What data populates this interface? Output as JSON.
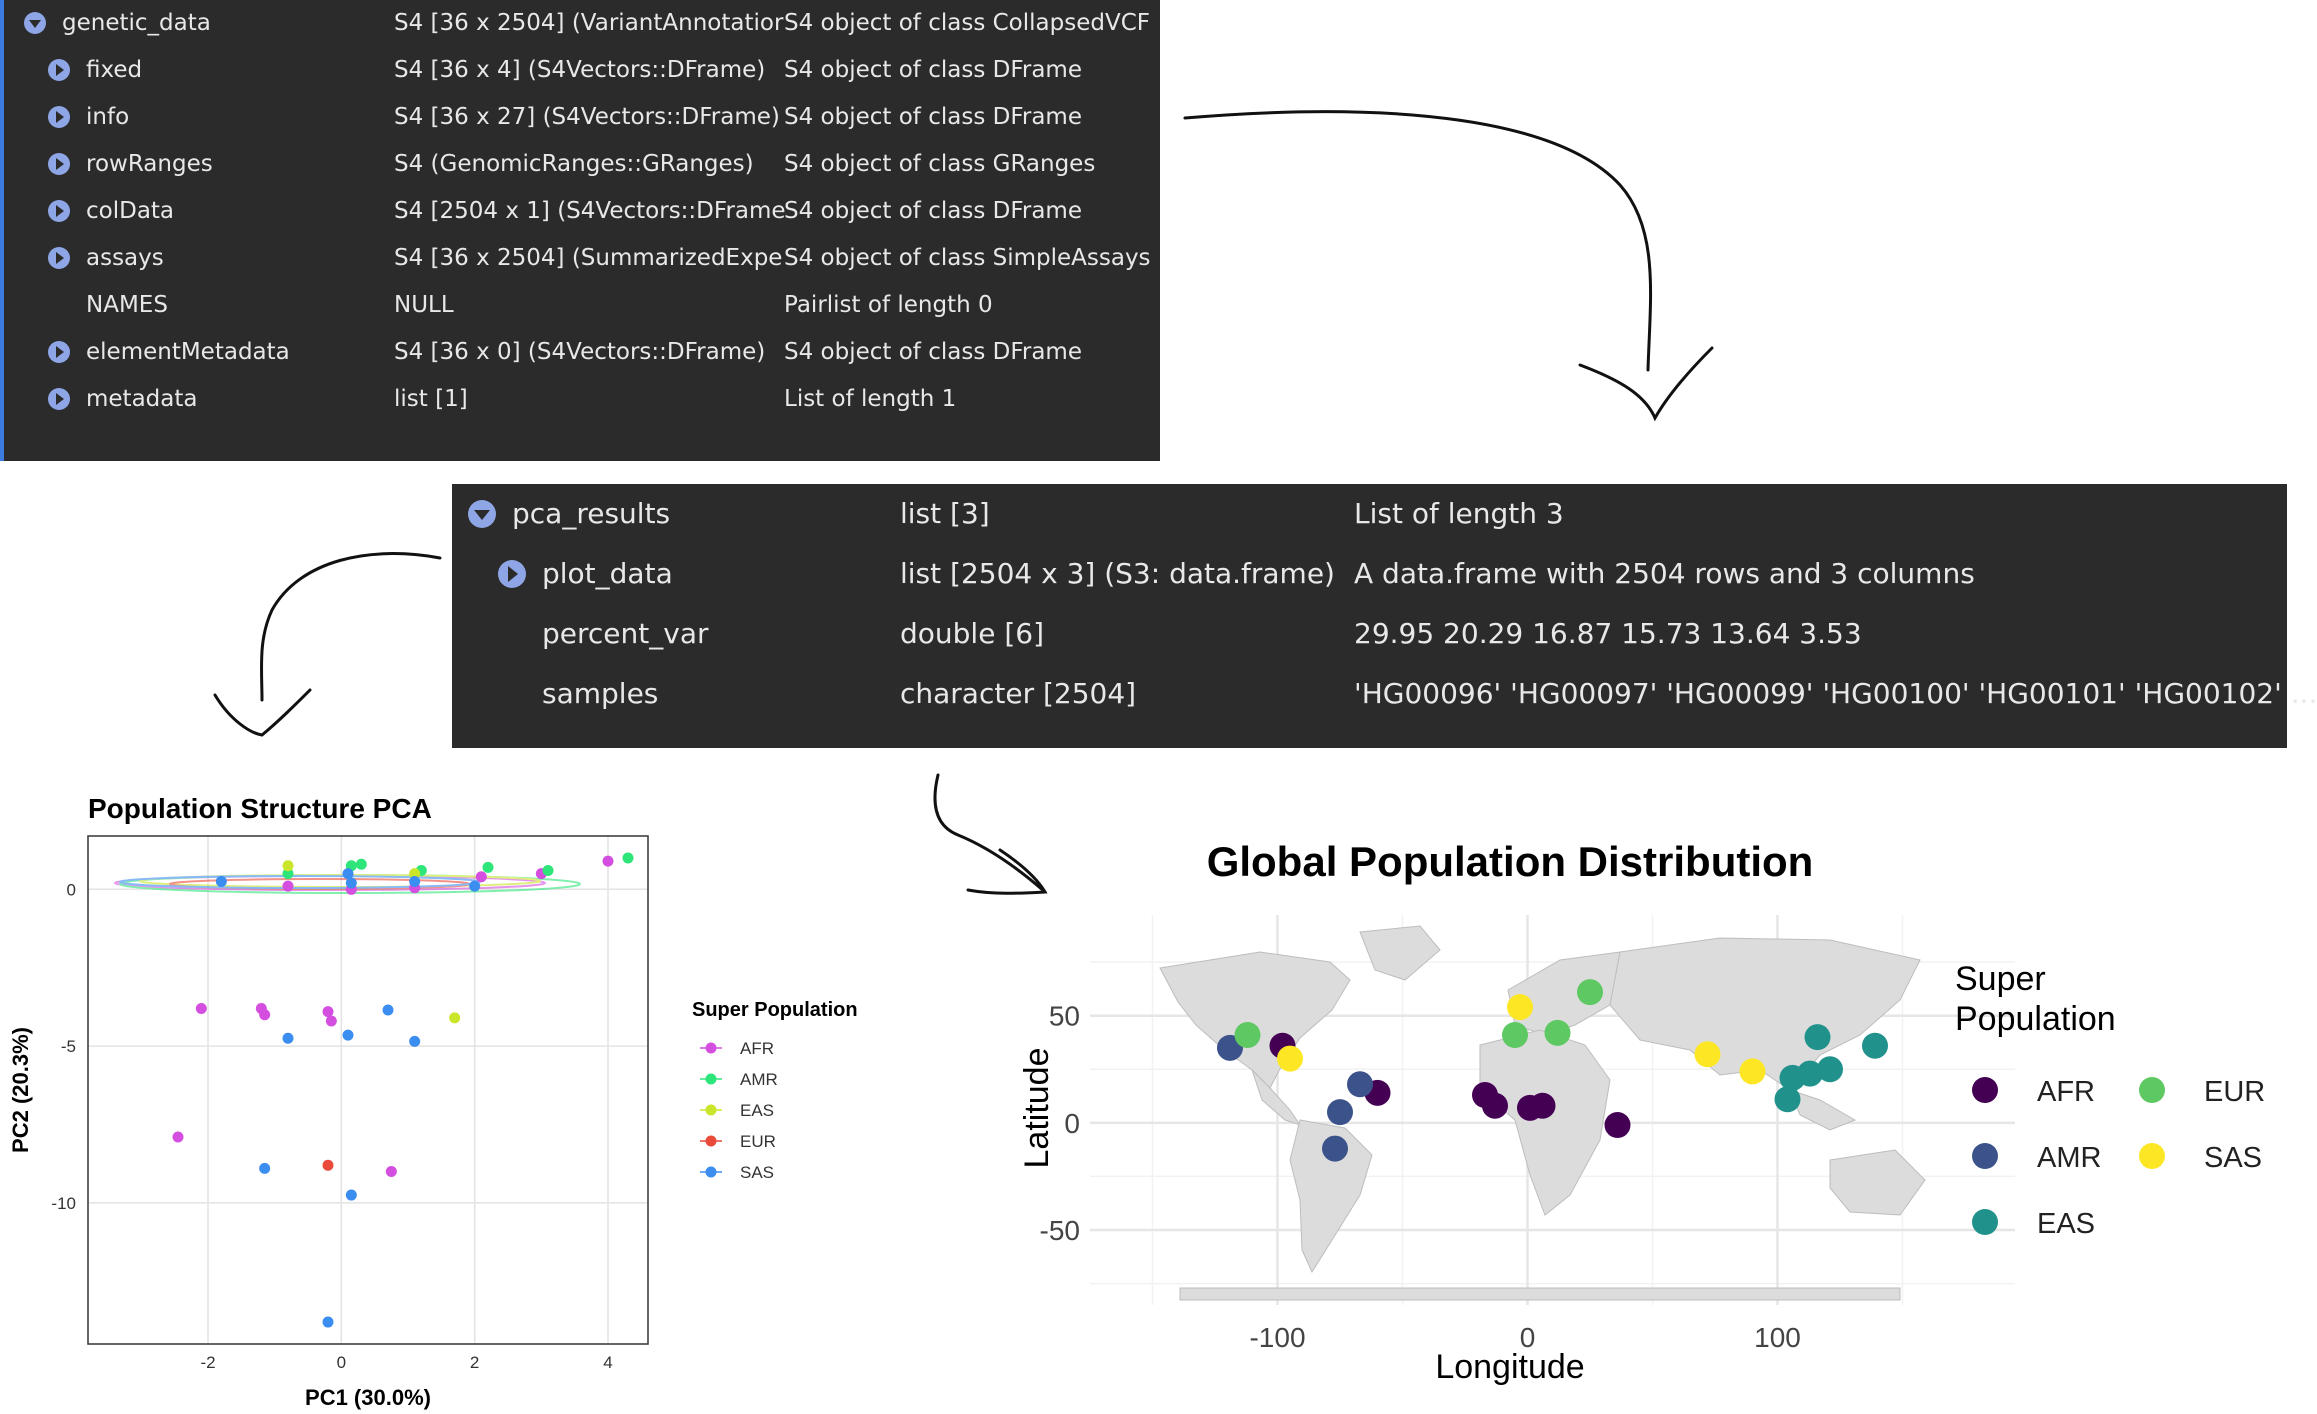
{
  "genetic_data_panel": {
    "rows": [
      {
        "name": "genetic_data",
        "type": "S4 [36 x 2504] (VariantAnnotatior",
        "value": "S4 object of class CollapsedVCF",
        "icon": "collapse-icon"
      },
      {
        "name": "fixed",
        "type": "S4 [36 x 4] (S4Vectors::DFrame)",
        "value": "S4 object of class DFrame",
        "icon": "expand-icon"
      },
      {
        "name": "info",
        "type": "S4 [36 x 27] (S4Vectors::DFrame)",
        "value": "S4 object of class DFrame",
        "icon": "expand-icon"
      },
      {
        "name": "rowRanges",
        "type": "S4 (GenomicRanges::GRanges)",
        "value": "S4 object of class GRanges",
        "icon": "expand-icon"
      },
      {
        "name": "colData",
        "type": "S4 [2504 x 1] (S4Vectors::DFrame",
        "value": "S4 object of class DFrame",
        "icon": "expand-icon"
      },
      {
        "name": "assays",
        "type": "S4 [36 x 2504] (SummarizedExpe",
        "value": "S4 object of class SimpleAssays",
        "icon": "expand-icon"
      },
      {
        "name": "NAMES",
        "type": "NULL",
        "value": "Pairlist of length 0",
        "icon": ""
      },
      {
        "name": "elementMetadata",
        "type": "S4 [36 x 0] (S4Vectors::DFrame)",
        "value": "S4 object of class DFrame",
        "icon": "expand-icon"
      },
      {
        "name": "metadata",
        "type": "list [1]",
        "value": "List of length 1",
        "icon": "expand-icon"
      }
    ]
  },
  "pca_panel": {
    "rows": [
      {
        "name": "pca_results",
        "type": "list [3]",
        "value": "List of length 3",
        "icon": "collapse-icon"
      },
      {
        "name": "plot_data",
        "type": "list [2504 x 3] (S3: data.frame)",
        "value": "A data.frame with 2504 rows and 3 columns",
        "icon": "expand-icon"
      },
      {
        "name": "percent_var",
        "type": "double [6]",
        "value": "29.95 20.29 16.87 15.73 13.64 3.53",
        "icon": ""
      },
      {
        "name": "samples",
        "type": "character [2504]",
        "value": "'HG00096' 'HG00097' 'HG00099' 'HG00100' 'HG00101' 'HG00102' ...",
        "icon": ""
      }
    ]
  },
  "chart_data": [
    {
      "type": "scatter",
      "title": "Population Structure PCA",
      "xlabel": "PC1 (30.0%)",
      "ylabel": "PC2 (20.3%)",
      "xlim": [
        -3.8,
        4.6
      ],
      "ylim": [
        -14.5,
        1.7
      ],
      "x_ticks": [
        "-2",
        "0",
        "2",
        "4"
      ],
      "y_ticks": [
        "0",
        "-5",
        "-10"
      ],
      "x_tick_values": [
        -2,
        0,
        2,
        4
      ],
      "y_tick_values": [
        0,
        -5,
        -10
      ],
      "grid": true,
      "legend_title": "Super Population",
      "legend_position": "right",
      "series": [
        {
          "name": "AFR",
          "color": "#d44fe0",
          "points": [
            [
              -0.8,
              0.1
            ],
            [
              0.15,
              0.0
            ],
            [
              1.1,
              0.05
            ],
            [
              2.1,
              0.4
            ],
            [
              3.0,
              0.5
            ],
            [
              4.0,
              0.9
            ],
            [
              -2.1,
              -3.8
            ],
            [
              -1.2,
              -3.8
            ],
            [
              -1.15,
              -4.0
            ],
            [
              -0.2,
              -3.9
            ],
            [
              -0.15,
              -4.2
            ],
            [
              -2.45,
              -7.9
            ],
            [
              0.75,
              -9.0
            ]
          ]
        },
        {
          "name": "AMR",
          "color": "#2ee57a",
          "points": [
            [
              -0.8,
              0.5
            ],
            [
              0.15,
              0.75
            ],
            [
              0.3,
              0.8
            ],
            [
              1.2,
              0.6
            ],
            [
              2.2,
              0.7
            ],
            [
              3.1,
              0.6
            ],
            [
              4.3,
              1.0
            ]
          ]
        },
        {
          "name": "EAS",
          "color": "#cbe52a",
          "points": [
            [
              -0.8,
              0.75
            ],
            [
              1.1,
              0.5
            ],
            [
              1.7,
              -4.1
            ]
          ]
        },
        {
          "name": "EUR",
          "color": "#ea4a3a",
          "points": [
            [
              -0.2,
              -8.8
            ]
          ]
        },
        {
          "name": "SAS",
          "color": "#3b8df0",
          "points": [
            [
              -1.8,
              0.25
            ],
            [
              0.1,
              0.5
            ],
            [
              0.15,
              0.2
            ],
            [
              1.1,
              0.25
            ],
            [
              2.0,
              0.1
            ],
            [
              -0.8,
              -4.75
            ],
            [
              0.1,
              -4.65
            ],
            [
              0.7,
              -3.85
            ],
            [
              1.1,
              -4.85
            ],
            [
              -1.15,
              -8.9
            ],
            [
              0.15,
              -9.75
            ],
            [
              -0.2,
              -13.8
            ]
          ]
        }
      ]
    },
    {
      "type": "scatter",
      "title": "Global Population Distribution",
      "xlabel": "Longitude",
      "ylabel": "Latitude",
      "xlim": [
        -175,
        195
      ],
      "ylim": [
        -85,
        97
      ],
      "x_ticks": [
        "-100",
        "0",
        "100"
      ],
      "y_ticks": [
        "50",
        "0",
        "-50"
      ],
      "x_tick_values": [
        -100,
        0,
        100
      ],
      "y_tick_values": [
        50,
        0,
        -50
      ],
      "grid": true,
      "legend_title": "Super Population",
      "legend_title_lines": [
        "Super",
        "Population"
      ],
      "legend_position": "right",
      "series": [
        {
          "name": "AFR",
          "color": "#440154",
          "points": [
            [
              -98,
              36
            ],
            [
              -60,
              14
            ],
            [
              -17,
              13
            ],
            [
              -13,
              8
            ],
            [
              1,
              7
            ],
            [
              6,
              8
            ],
            [
              36,
              -1
            ]
          ]
        },
        {
          "name": "AMR",
          "color": "#3b528b",
          "points": [
            [
              -119,
              35
            ],
            [
              -67,
              18
            ],
            [
              -75,
              5
            ],
            [
              -77,
              -12
            ]
          ]
        },
        {
          "name": "EAS",
          "color": "#21918c",
          "points": [
            [
              116,
              40
            ],
            [
              139,
              36
            ],
            [
              113,
              23
            ],
            [
              121,
              25
            ],
            [
              106,
              21
            ],
            [
              104,
              11
            ]
          ]
        },
        {
          "name": "EUR",
          "color": "#5ec962",
          "points": [
            [
              -112,
              41
            ],
            [
              -5,
              41
            ],
            [
              12,
              42
            ],
            [
              25,
              61
            ]
          ]
        },
        {
          "name": "SAS",
          "color": "#fde725",
          "points": [
            [
              -95,
              30
            ],
            [
              -3,
              54
            ],
            [
              72,
              32
            ],
            [
              90,
              24
            ]
          ]
        }
      ]
    }
  ]
}
